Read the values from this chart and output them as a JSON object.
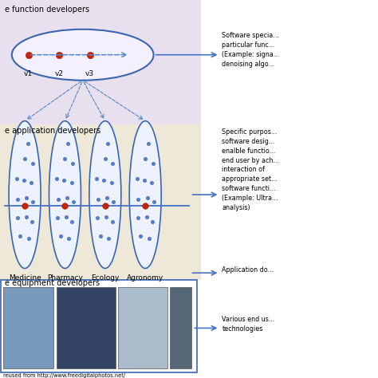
{
  "bg_top": "#e8e0ee",
  "bg_mid": "#ede8d8",
  "bg_bot": "#ffffff",
  "label_top": "e function developers",
  "label_mid": "e application developers",
  "label_bot": "e equipment developers",
  "domains": [
    "Medicine",
    "Pharmacy",
    "Ecology",
    "Agronomy"
  ],
  "v_labels": [
    "v1",
    "v2",
    "v3"
  ],
  "red_dot_color": "#cc2200",
  "blue_dot_color": "#4472c4",
  "blue_dot_light": "#a8bfe8",
  "ellipse_edge_color": "#3a65b0",
  "ellipse_face_top": "#f5f0ff",
  "ellipse_face_mid": "#eef2ff",
  "arrow_color": "#4472c4",
  "dashed_color": "#5588cc",
  "right_text_1": "Software specia...\nparticular func...\n(Example: signa...\ndenoising algo...",
  "right_text_2": "Specific purpos...\nsoftware desig...\nenalble functio...\nend user by ach...\ninteraction of\nappropriate set...\nsoftware functi...\n(Example: Ultra...\nanalysis)",
  "right_text_3": "Application do...",
  "right_text_4": "Various end us...\ntechnologies",
  "credit_text": "reused from http://www.freedigitalphotos.net/"
}
